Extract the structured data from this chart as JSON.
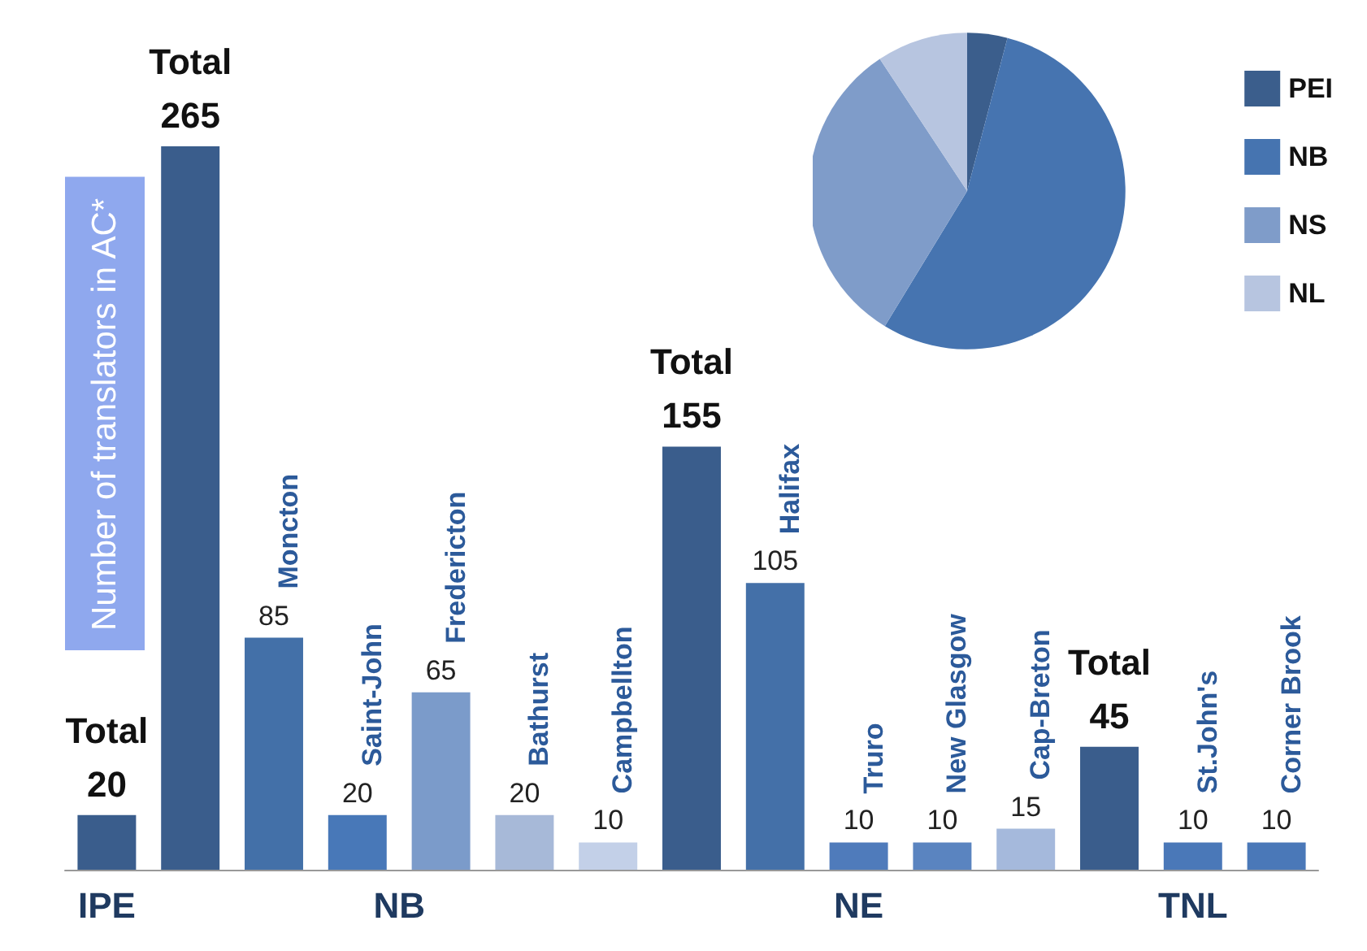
{
  "chart_data": [
    {
      "type": "bar",
      "ylabel": "Number of translators in AC*",
      "categories": [
        null,
        null,
        "Moncton",
        "Saint-John",
        "Fredericton",
        "Bathurst",
        "Campbellton",
        null,
        "Halifax",
        "Truro",
        "New Glasgow",
        "Cap-Breton",
        null,
        "St.John's",
        "Corner Brook"
      ],
      "series": [
        {
          "name": "Total",
          "color": "#3a5d8c",
          "values": [
            20,
            265,
            null,
            null,
            null,
            null,
            null,
            155,
            null,
            null,
            null,
            null,
            45,
            null,
            null
          ]
        },
        {
          "colors": [
            null,
            null,
            "#4370a8",
            "#4878b8",
            "#7b9bca",
            "#a7b9d8",
            "#c3d0e8",
            null,
            "#4470a8",
            "#4f7bbb",
            "#5a84c0",
            "#a5b9dc",
            null,
            "#4a78b8",
            "#4a78b8"
          ],
          "values": [
            null,
            null,
            85,
            20,
            65,
            20,
            10,
            null,
            105,
            10,
            10,
            15,
            null,
            10,
            10
          ]
        }
      ],
      "annotations": [
        "IPE",
        "NB",
        "NE",
        "TNL"
      ],
      "data_labels": true
    },
    {
      "type": "pie",
      "categories": [
        "PEI",
        "NB",
        "NS",
        "NL"
      ],
      "values": [
        4.1,
        54.6,
        32.0,
        9.3
      ],
      "colors": [
        "#3b5e8c",
        "#4674b0",
        "#7f9cc9",
        "#b7c5e0"
      ],
      "legend": "right"
    }
  ]
}
